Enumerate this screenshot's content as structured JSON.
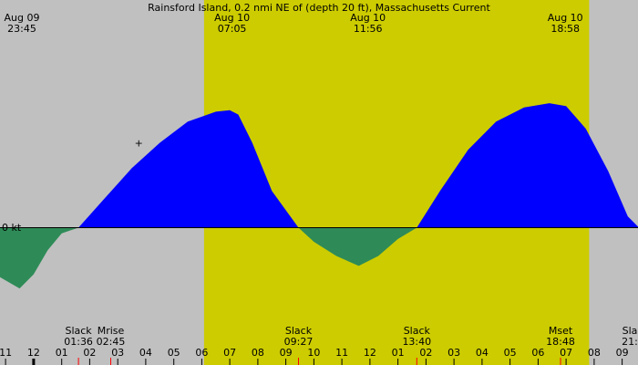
{
  "chart_data": {
    "type": "area",
    "title": "Rainsford Island, 0.2 nmi NE of (depth 20 ft), Massachusetts Current",
    "zero_label": "0 kt",
    "colors": {
      "night": "#c0c0c0",
      "day": "#cccc00",
      "flood": "#0000ff",
      "ebb": "#2e8b57",
      "event_tick": "#ff0000"
    },
    "daylight_hours": [
      6.08,
      19.82
    ],
    "x_range_hours": [
      -1.2,
      21.6
    ],
    "series": [
      {
        "points": [
          [
            -1.2,
            -0.35
          ],
          [
            -0.5,
            -0.43
          ],
          [
            0.0,
            -0.33
          ],
          [
            0.5,
            -0.16
          ],
          [
            1.0,
            -0.04
          ],
          [
            1.6,
            0.0
          ],
          [
            2.5,
            0.2
          ],
          [
            3.5,
            0.42
          ],
          [
            4.5,
            0.6
          ],
          [
            5.5,
            0.75
          ],
          [
            6.5,
            0.82
          ],
          [
            7.0,
            0.83
          ],
          [
            7.3,
            0.8
          ],
          [
            7.8,
            0.6
          ],
          [
            8.5,
            0.26
          ],
          [
            9.45,
            0.0
          ],
          [
            10.0,
            -0.1
          ],
          [
            10.8,
            -0.2
          ],
          [
            11.6,
            -0.27
          ],
          [
            12.3,
            -0.2
          ],
          [
            13.0,
            -0.08
          ],
          [
            13.67,
            0.0
          ],
          [
            14.5,
            0.26
          ],
          [
            15.5,
            0.55
          ],
          [
            16.5,
            0.75
          ],
          [
            17.5,
            0.85
          ],
          [
            18.4,
            0.88
          ],
          [
            19.0,
            0.86
          ],
          [
            19.7,
            0.7
          ],
          [
            20.5,
            0.4
          ],
          [
            21.2,
            0.08
          ],
          [
            21.6,
            0.0
          ]
        ]
      }
    ],
    "top_labels": [
      {
        "hour": -1.25,
        "date": "Aug 09",
        "time": "23:45"
      },
      {
        "hour": 7.08,
        "date": "Aug 10",
        "time": "07:05"
      },
      {
        "hour": 11.93,
        "date": "Aug 10",
        "time": "11:56"
      },
      {
        "hour": 18.97,
        "date": "Aug 10",
        "time": "18:58"
      }
    ],
    "marker": {
      "hour": 3.75,
      "value": 0.6,
      "symbol": "+"
    },
    "events": [
      {
        "hour": 1.6,
        "name": "Slack",
        "time": "01:36"
      },
      {
        "hour": 2.75,
        "name": "Mrise",
        "time": "02:45"
      },
      {
        "hour": 9.45,
        "name": "Slack",
        "time": "09:27"
      },
      {
        "hour": 13.67,
        "name": "Slack",
        "time": "13:40"
      },
      {
        "hour": 18.8,
        "name": "Mset",
        "time": "18:48"
      },
      {
        "hour": 21.6,
        "name": "Sla",
        "time": "21:"
      }
    ],
    "hour_ticks": [
      "11",
      "12",
      "01",
      "02",
      "03",
      "04",
      "05",
      "06",
      "07",
      "08",
      "09",
      "10",
      "11",
      "12",
      "01",
      "02",
      "03",
      "04",
      "05",
      "06",
      "07",
      "08",
      "09"
    ]
  }
}
